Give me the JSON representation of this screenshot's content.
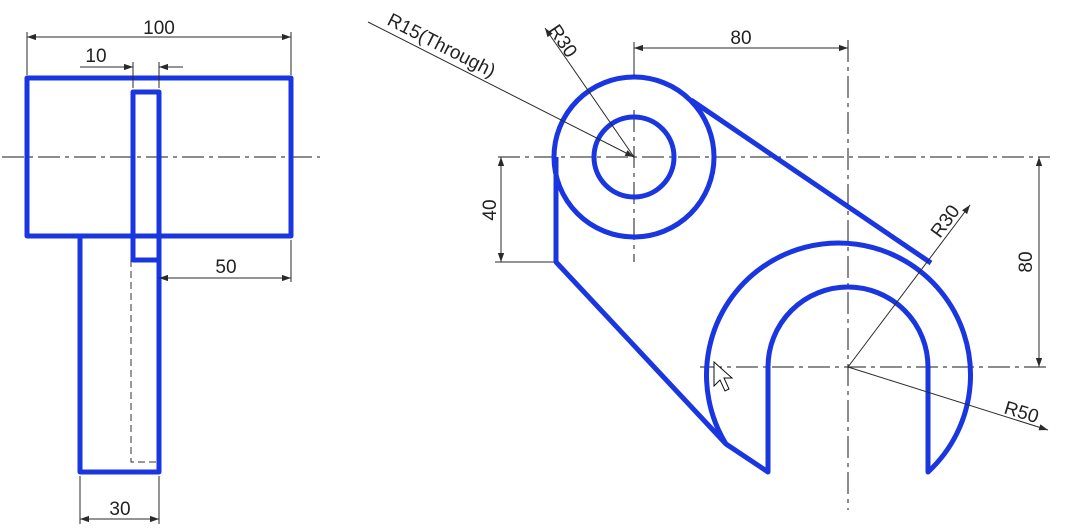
{
  "dimensions": {
    "front_width": "100",
    "front_slot_width": "10",
    "front_offset": "50",
    "front_stem_width": "30",
    "plan_hole_radius": "R15(Through)",
    "plan_boss_radius": "R30",
    "plan_center_spacing": "80",
    "plan_vertical_offset": "40",
    "plan_fork_inner_radius": "R30",
    "plan_fork_outer_radius": "R50",
    "plan_vertical_spacing": "80"
  },
  "colors": {
    "object_line": "#1a36e0",
    "dimension_line": "#2a2a2a"
  }
}
